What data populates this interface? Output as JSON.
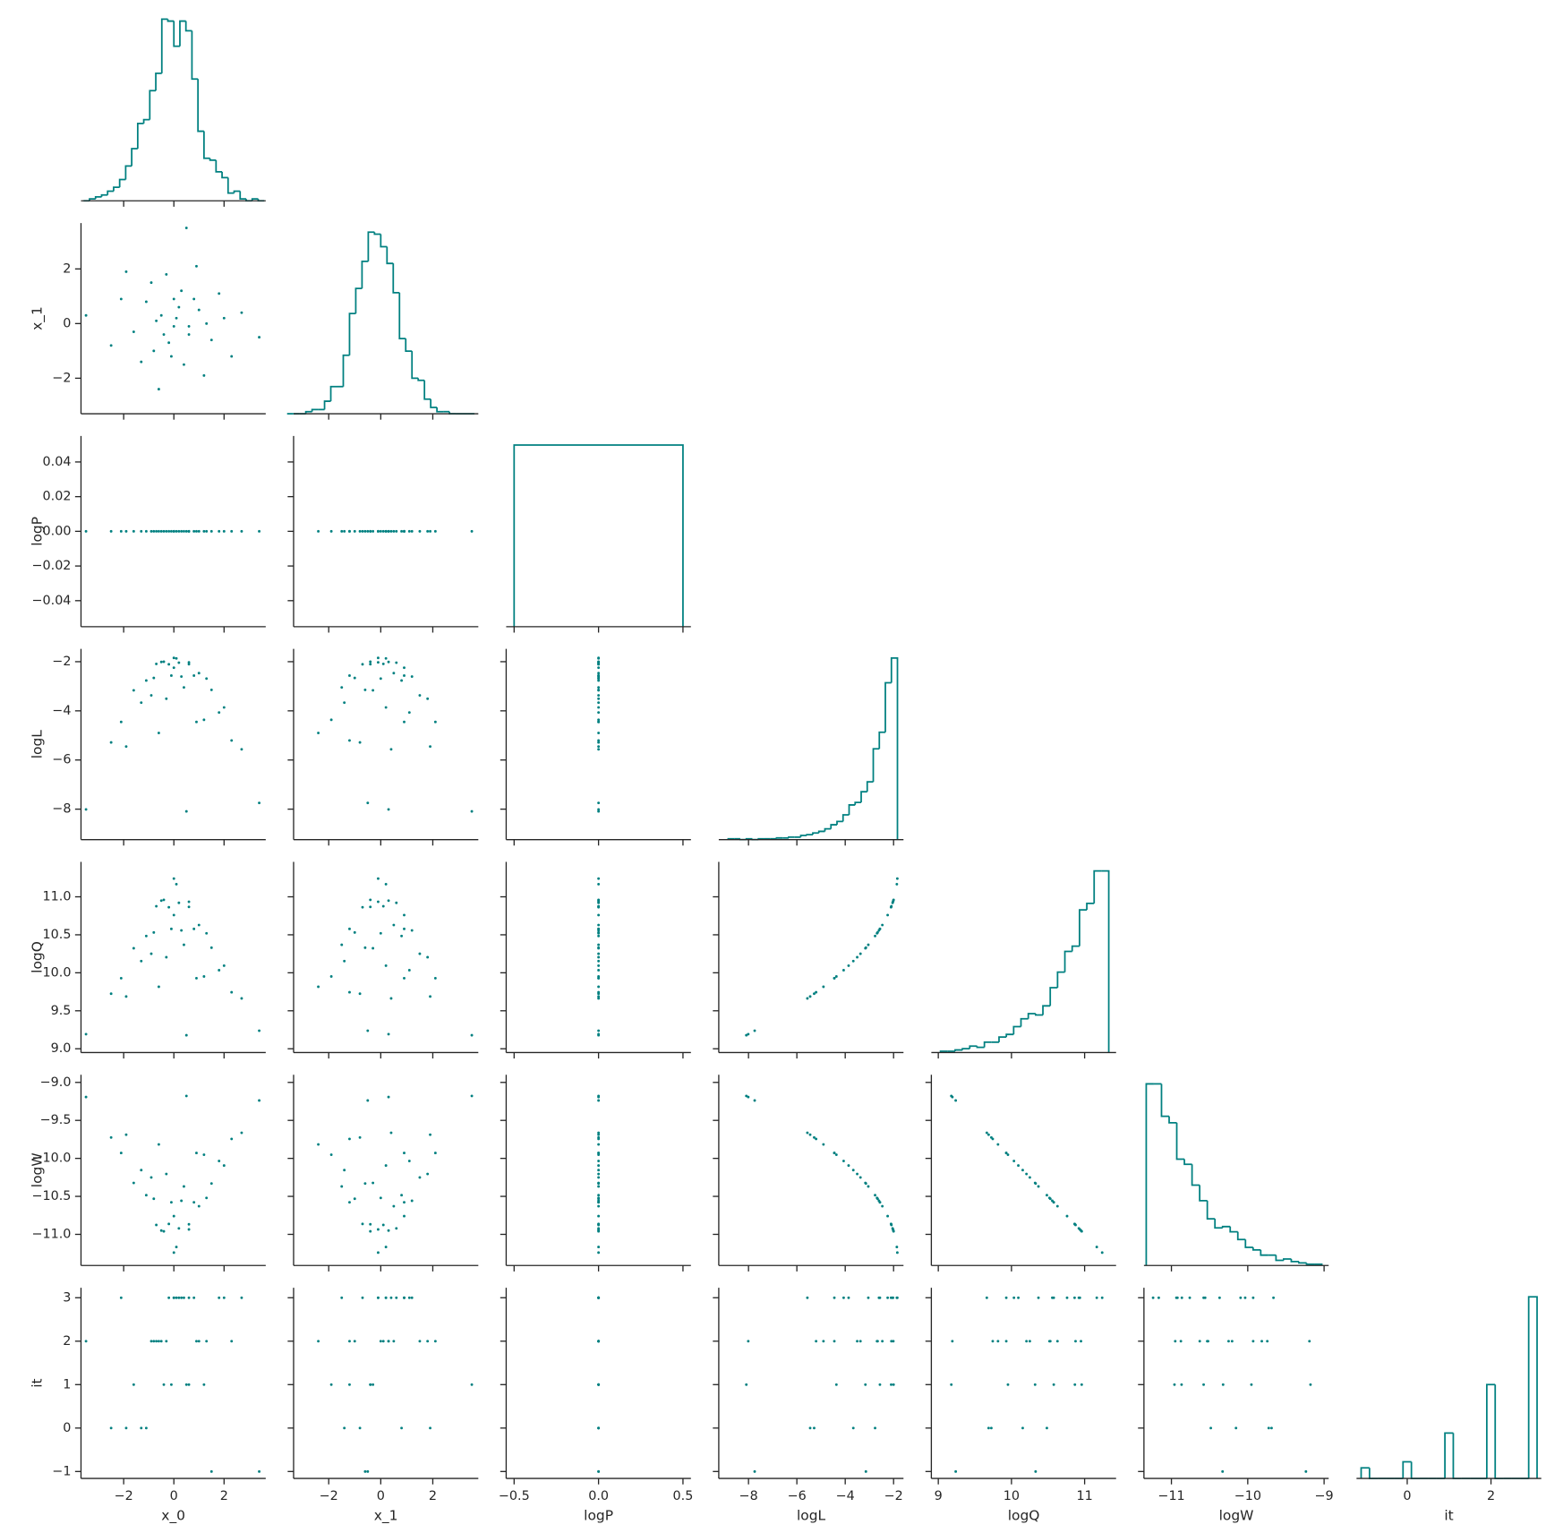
{
  "chart_data": {
    "type": "pairplot",
    "color": "#008080",
    "variables": [
      {
        "name": "x_0",
        "xlim": [
          -3.7,
          3.66
        ],
        "xticks": [
          {
            "value": -2,
            "label": "−2"
          },
          0,
          2
        ],
        "bins": [
          -3.6,
          -3.36,
          -3.12,
          -2.88,
          -2.64,
          -2.4,
          -2.16,
          -1.92,
          -1.68,
          -1.44,
          -1.2,
          -0.96,
          -0.72,
          -0.48,
          -0.24,
          0,
          0.24,
          0.48,
          0.72,
          0.96,
          1.2,
          1.44,
          1.68,
          1.92,
          2.16,
          2.4,
          2.64,
          2.88,
          3.12,
          3.36,
          3.6
        ],
        "counts": [
          0,
          1,
          2,
          3,
          5,
          7,
          11,
          18,
          27,
          40,
          42,
          57,
          66,
          94,
          93,
          80,
          93,
          88,
          63,
          36,
          22,
          21,
          15,
          12,
          4,
          5,
          1,
          0,
          1,
          0
        ],
        "samples": [
          0.1,
          -0.5,
          0.6,
          -0.2,
          1.0,
          -1.1,
          0.3,
          -0.8,
          1.5,
          -1.6,
          0.4,
          -0.3,
          2.0,
          -2.1,
          0.9,
          1.2,
          -2.5,
          2.7,
          -0.6,
          3.4,
          -3.5,
          0.5,
          0.0,
          0.2,
          -0.7,
          0.8,
          -0.4,
          1.3,
          -1.3,
          0.0,
          -0.9,
          1.8,
          0.6,
          -0.1,
          2.3,
          -1.9
        ]
      },
      {
        "name": "x_1",
        "xlim": [
          -3.35,
          3.75
        ],
        "xticks": [
          {
            "value": -2,
            "label": "−2"
          },
          0,
          2
        ],
        "ylim": [
          -3.3,
          3.68
        ],
        "yticks": [
          {
            "value": -2,
            "label": "−2"
          },
          0,
          2
        ],
        "bins": [
          -3.6,
          -3.36,
          -3.12,
          -2.88,
          -2.64,
          -2.4,
          -2.16,
          -1.92,
          -1.68,
          -1.44,
          -1.2,
          -0.96,
          -0.72,
          -0.48,
          -0.24,
          0,
          0.24,
          0.48,
          0.72,
          0.96,
          1.2,
          1.44,
          1.68,
          1.92,
          2.16,
          2.4,
          2.64,
          2.88,
          3.12,
          3.36,
          3.6
        ],
        "counts": [
          0,
          0,
          0,
          1,
          2,
          2,
          6,
          13,
          13,
          28,
          48,
          60,
          73,
          87,
          86,
          80,
          72,
          58,
          36,
          30,
          17,
          16,
          7,
          3,
          1,
          1,
          0,
          0,
          0,
          0
        ],
        "samples": [
          0.2,
          0.3,
          -0.4,
          -0.7,
          0.5,
          0.8,
          1.2,
          -1.0,
          -0.6,
          -0.3,
          -1.5,
          1.8,
          0.2,
          0.9,
          2.1,
          -1.9,
          -0.8,
          0.4,
          -2.4,
          -0.5,
          0.3,
          3.5,
          -0.1,
          0.6,
          0.1,
          0.9,
          -0.4,
          0.0,
          -1.4,
          0.9,
          1.5,
          1.1,
          -0.1,
          -1.2,
          -1.2,
          1.9
        ]
      },
      {
        "name": "logP",
        "xlim": [
          -0.547,
          0.547
        ],
        "xticks": [
          {
            "value": -0.5,
            "label": "−0.5"
          },
          {
            "value": 0,
            "label": "0.0"
          },
          0.5
        ],
        "ylim": [
          -0.055,
          0.055
        ],
        "yticks": [
          {
            "value": -0.04,
            "label": "−0.04"
          },
          {
            "value": -0.02,
            "label": "−0.02"
          },
          {
            "value": 0,
            "label": "0.00"
          },
          0.02,
          0.04
        ],
        "bins": [
          -0.5,
          0.5
        ],
        "counts": [
          1000
        ],
        "samples": [
          0,
          0,
          0,
          0,
          0,
          0,
          0,
          0,
          0,
          0,
          0,
          0,
          0,
          0,
          0,
          0,
          0,
          0,
          0,
          0,
          0,
          0,
          0,
          0,
          0,
          0,
          0,
          0,
          0,
          0,
          0,
          0,
          0,
          0,
          0,
          0
        ]
      },
      {
        "name": "logL",
        "xlim": [
          -9.23,
          -1.59
        ],
        "xticks": [
          {
            "value": -8,
            "label": "−8"
          },
          {
            "value": -6,
            "label": "−6"
          },
          {
            "value": -4,
            "label": "−4"
          },
          {
            "value": -2,
            "label": "−2"
          }
        ],
        "ylim": [
          -9.24,
          -1.48
        ],
        "yticks": [
          {
            "value": -8,
            "label": "−8"
          },
          {
            "value": -6,
            "label": "−6"
          },
          {
            "value": -4,
            "label": "−4"
          },
          {
            "value": -2,
            "label": "−2"
          }
        ],
        "bins": [
          -8.84,
          -8.59,
          -8.34,
          -8.09,
          -7.84,
          -7.59,
          -7.34,
          -7.09,
          -6.84,
          -6.59,
          -6.34,
          -6.09,
          -5.84,
          -5.59,
          -5.34,
          -5.09,
          -4.84,
          -4.59,
          -4.34,
          -4.09,
          -3.84,
          -3.59,
          -3.34,
          -3.09,
          -2.84,
          -2.59,
          -2.34,
          -2.09,
          -1.84
        ],
        "counts": [
          1,
          1,
          0,
          1,
          0,
          1,
          1,
          1,
          2,
          2,
          3,
          3,
          5,
          6,
          8,
          10,
          13,
          18,
          22,
          30,
          42,
          45,
          58,
          70,
          110,
          130,
          190,
          220
        ],
        "samples": [
          -1.865,
          -2.01,
          -2.1,
          -2.105,
          -2.465,
          -2.765,
          -2.605,
          -2.66,
          -3.145,
          -3.165,
          -3.045,
          -3.505,
          -3.86,
          -4.45,
          -4.45,
          -4.365,
          -5.285,
          -5.565,
          -4.9,
          -7.745,
          -8.01,
          -8.09,
          -1.845,
          -2.04,
          -2.09,
          -2.565,
          -2.0,
          -2.685,
          -3.665,
          -2.245,
          -3.37,
          -4.065,
          -2.025,
          -2.565,
          -5.205,
          -5.45
        ]
      },
      {
        "name": "logQ",
        "xlim": [
          8.905,
          11.43
        ],
        "xticks": [
          9,
          10,
          11
        ],
        "ylim": [
          8.95,
          11.46
        ],
        "yticks": [
          {
            "value": 9,
            "label": "9.0"
          },
          9.5,
          {
            "value": 10,
            "label": "10.0"
          },
          10.5,
          {
            "value": 11,
            "label": "11.0"
          }
        ],
        "bins": [
          9.03,
          9.13,
          9.23,
          9.33,
          9.43,
          9.53,
          9.63,
          9.73,
          9.83,
          9.93,
          10.03,
          10.13,
          10.23,
          10.33,
          10.43,
          10.53,
          10.63,
          10.73,
          10.83,
          10.93,
          11.03,
          11.13,
          11.23,
          11.33
        ],
        "counts": [
          1,
          1,
          2,
          3,
          5,
          4,
          8,
          8,
          12,
          14,
          20,
          26,
          30,
          29,
          36,
          50,
          62,
          78,
          82,
          110,
          115,
          140,
          140
        ],
        "samples": [
          11.166,
          10.95,
          10.867,
          10.863,
          10.629,
          10.484,
          10.558,
          10.531,
          10.33,
          10.323,
          10.369,
          10.205,
          10.094,
          9.929,
          9.929,
          9.952,
          9.725,
          9.663,
          9.816,
          9.238,
          9.192,
          9.178,
          11.24,
          10.921,
          10.876,
          10.578,
          10.96,
          10.52,
          10.154,
          10.76,
          10.251,
          10.034,
          10.935,
          10.578,
          9.744,
          9.688
        ]
      },
      {
        "name": "logW",
        "xlim": [
          -11.36,
          -8.94
        ],
        "xticks": [
          {
            "value": -11,
            "label": "−11"
          },
          {
            "value": -10,
            "label": "−10"
          },
          {
            "value": -9,
            "label": "−9"
          }
        ],
        "ylim": [
          -11.41,
          -8.9
        ],
        "yticks": [
          {
            "value": -11,
            "label": "−11.0"
          },
          {
            "value": -10.5,
            "label": "−10.5"
          },
          {
            "value": -10,
            "label": "−10.0"
          },
          {
            "value": -9.5,
            "label": "−9.5"
          },
          {
            "value": -9,
            "label": "−9.0"
          }
        ],
        "bins": [
          -11.33,
          -11.23,
          -11.13,
          -11.03,
          -10.93,
          -10.83,
          -10.73,
          -10.63,
          -10.53,
          -10.43,
          -10.33,
          -10.23,
          -10.13,
          -10.03,
          -9.93,
          -9.83,
          -9.73,
          -9.63,
          -9.53,
          -9.43,
          -9.33,
          -9.23,
          -9.13,
          -9.03
        ],
        "counts": [
          140,
          140,
          115,
          110,
          82,
          78,
          62,
          50,
          36,
          29,
          30,
          26,
          20,
          14,
          12,
          8,
          8,
          4,
          5,
          3,
          2,
          1,
          1
        ],
        "samples": [
          -11.166,
          -10.95,
          -10.867,
          -10.863,
          -10.629,
          -10.484,
          -10.558,
          -10.531,
          -10.33,
          -10.323,
          -10.369,
          -10.205,
          -10.094,
          -9.929,
          -9.929,
          -9.952,
          -9.725,
          -9.663,
          -9.816,
          -9.238,
          -9.192,
          -9.178,
          -11.24,
          -10.921,
          -10.876,
          -10.578,
          -10.96,
          -10.52,
          -10.154,
          -10.76,
          -10.251,
          -10.034,
          -10.935,
          -10.578,
          -9.744,
          -9.688
        ]
      },
      {
        "name": "it",
        "xlim": [
          -1.21,
          3.2
        ],
        "xticks": [
          0,
          2
        ],
        "ylim": [
          -1.16,
          3.23
        ],
        "yticks": [
          {
            "value": -1,
            "label": "−1"
          },
          0,
          1,
          2,
          3
        ],
        "bins": [
          -1.1,
          -0.9,
          -0.7,
          -0.5,
          -0.3,
          -0.1,
          0.1,
          0.3,
          0.5,
          0.7,
          0.9,
          1.1,
          1.3,
          1.5,
          1.7,
          1.9,
          2.1,
          2.3,
          2.5,
          2.7,
          2.9,
          3.1
        ],
        "counts": [
          35,
          0,
          0,
          0,
          0,
          55,
          0,
          0,
          0,
          0,
          150,
          0,
          0,
          0,
          0,
          310,
          0,
          0,
          0,
          0,
          600
        ],
        "samples": [
          3,
          2,
          1,
          3,
          2,
          0,
          3,
          2,
          -1,
          1,
          3,
          2,
          3,
          3,
          2,
          1,
          0,
          3,
          2,
          -1,
          2,
          1,
          3,
          3,
          2,
          3,
          1,
          2,
          0,
          3,
          2,
          3,
          3,
          1,
          2,
          0
        ]
      }
    ]
  }
}
